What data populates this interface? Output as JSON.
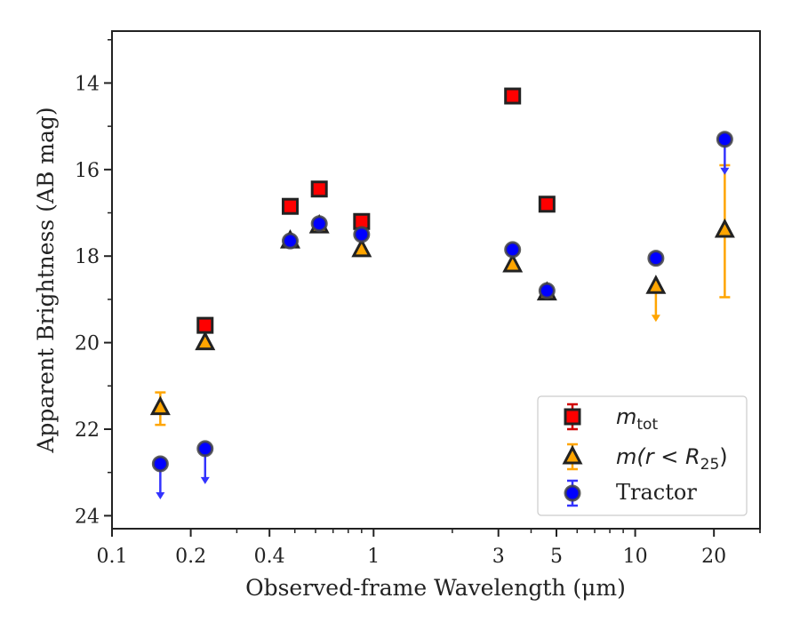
{
  "chart_data": {
    "type": "scatter",
    "title": "",
    "xlabel": "Observed-frame Wavelength (μm)",
    "ylabel": "Apparent Brightness (AB mag)",
    "xscale": "log",
    "yaxis_inverted": true,
    "xlim": [
      0.1,
      30
    ],
    "ylim": [
      24.3,
      12.8
    ],
    "xticks": [
      {
        "value": 0.1,
        "label": "0.1"
      },
      {
        "value": 0.2,
        "label": "0.2"
      },
      {
        "value": 0.4,
        "label": "0.4"
      },
      {
        "value": 1,
        "label": "1"
      },
      {
        "value": 3,
        "label": "3"
      },
      {
        "value": 5,
        "label": "5"
      },
      {
        "value": 10,
        "label": "10"
      },
      {
        "value": 20,
        "label": "20"
      }
    ],
    "yticks": [
      {
        "value": 14,
        "label": "14"
      },
      {
        "value": 16,
        "label": "16"
      },
      {
        "value": 18,
        "label": "18"
      },
      {
        "value": 20,
        "label": "20"
      },
      {
        "value": 22,
        "label": "22"
      },
      {
        "value": 24,
        "label": "24"
      }
    ],
    "legend_position": "bottom-right",
    "series": [
      {
        "key": "mtot",
        "label_main": "m",
        "label_sub": "tot",
        "marker": "square",
        "fill_color": "#ff0000",
        "edge_color": "#222222",
        "error_color": "#d10000",
        "points": [
          {
            "x": 0.227,
            "y": 19.6
          },
          {
            "x": 0.48,
            "y": 16.85
          },
          {
            "x": 0.62,
            "y": 16.45
          },
          {
            "x": 0.9,
            "y": 17.2
          },
          {
            "x": 3.4,
            "y": 14.3
          },
          {
            "x": 4.6,
            "y": 16.8
          }
        ]
      },
      {
        "key": "mr25",
        "label_main": "m(r < R",
        "label_sub": "25",
        "label_tail": ")",
        "marker": "triangle",
        "fill_color": "#ffa500",
        "edge_color": "#222222",
        "error_color": "#ffa500",
        "points": [
          {
            "x": 0.153,
            "y": 21.5,
            "err_low": 0.35,
            "err_high": 0.4
          },
          {
            "x": 0.227,
            "y": 20.0
          },
          {
            "x": 0.48,
            "y": 17.65
          },
          {
            "x": 0.62,
            "y": 17.3
          },
          {
            "x": 0.9,
            "y": 17.85
          },
          {
            "x": 3.4,
            "y": 18.2
          },
          {
            "x": 4.6,
            "y": 18.85
          },
          {
            "x": 12,
            "y": 18.7,
            "upper_limit": true
          },
          {
            "x": 22,
            "y": 17.4,
            "err_low": 1.5,
            "err_high": 1.55
          }
        ]
      },
      {
        "key": "tractor",
        "label_main": "Tractor",
        "marker": "circle",
        "fill_color": "#0000ff",
        "edge_color": "#444444",
        "error_color": "#3333ff",
        "points": [
          {
            "x": 0.153,
            "y": 22.8,
            "upper_limit": true
          },
          {
            "x": 0.227,
            "y": 22.45,
            "upper_limit": true
          },
          {
            "x": 0.48,
            "y": 17.65
          },
          {
            "x": 0.62,
            "y": 17.25
          },
          {
            "x": 0.9,
            "y": 17.5
          },
          {
            "x": 3.4,
            "y": 17.85
          },
          {
            "x": 4.6,
            "y": 18.8
          },
          {
            "x": 12,
            "y": 18.05
          },
          {
            "x": 22,
            "y": 15.3,
            "upper_limit": true
          }
        ]
      }
    ]
  }
}
